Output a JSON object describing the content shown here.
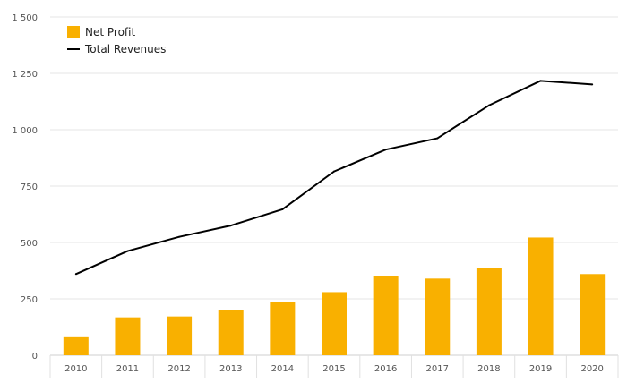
{
  "chart_data": {
    "type": "bar",
    "title": "",
    "xlabel": "",
    "ylabel": "",
    "categories": [
      "2010",
      "2011",
      "2012",
      "2013",
      "2014",
      "2015",
      "2016",
      "2017",
      "2018",
      "2019",
      "2020"
    ],
    "series": [
      {
        "name": "Net Profit",
        "type": "bar",
        "color": "#F9B000",
        "values": [
          80,
          168,
          172,
          200,
          237,
          280,
          352,
          340,
          388,
          522,
          360
        ]
      },
      {
        "name": "Total Revenues",
        "type": "line",
        "color": "#000000",
        "values": [
          360,
          462,
          525,
          575,
          647,
          815,
          912,
          962,
          1108,
          1217,
          1201
        ]
      }
    ],
    "ylim": [
      0,
      1500
    ],
    "yticks": [
      0,
      250,
      500,
      750,
      1000,
      1250,
      1500
    ],
    "ytick_labels": [
      "0",
      "250",
      "500",
      "750",
      "1 000",
      "1 250",
      "1 500"
    ],
    "grid": true,
    "legend_position": "top-left"
  }
}
